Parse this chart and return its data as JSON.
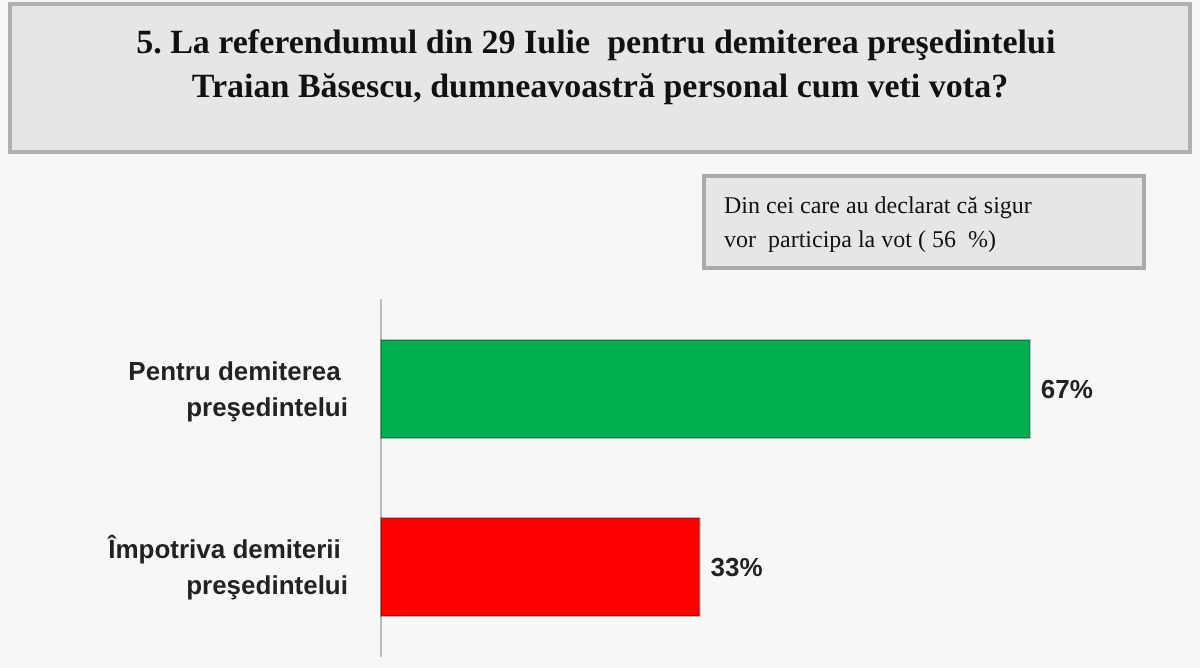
{
  "chart_data": {
    "type": "bar",
    "orientation": "horizontal",
    "title": "5. La referendumul din 29 Iulie  pentru demiterea preşedintelui Traian Băsescu, dumneavoastră personal cum veti vota?",
    "annotations": [
      "Din cei care au declarat că sigur vor  participa la vot ( 56  %)"
    ],
    "categories": [
      "Pentru demiterea preşedintelui",
      "Împotriva demiterii preşedintelui"
    ],
    "values": [
      67,
      33
    ],
    "colors": [
      "#00b050",
      "#ff0000"
    ],
    "value_labels": [
      "67%",
      "33%"
    ]
  }
}
